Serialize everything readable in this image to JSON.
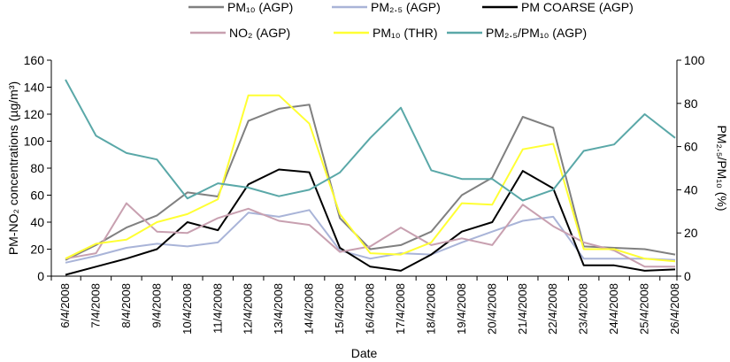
{
  "chart_data": {
    "type": "line",
    "xlabel": "Date",
    "ylabel": "PM-NO₂ concentrations (µg/m³)",
    "y2label": "PM₂.₅/PM₁₀ (%)",
    "ylim": [
      0,
      160
    ],
    "y2lim": [
      0,
      100
    ],
    "yticks": [
      0,
      20,
      40,
      60,
      80,
      100,
      120,
      140,
      160
    ],
    "y2ticks": [
      0,
      20,
      40,
      60,
      80,
      100
    ],
    "grid": false,
    "legend_position": "top",
    "categories": [
      "6/4/2008",
      "7/4/2008",
      "8/4/2008",
      "9/4/2008",
      "10/4/2008",
      "11/4/2008",
      "12/4/2008",
      "13/4/2008",
      "14/4/2008",
      "15/4/2008",
      "16/4/2008",
      "17/4/2008",
      "18/4/2008",
      "19/4/2008",
      "20/4/2008",
      "21/4/2008",
      "22/4/2008",
      "23/4/2008",
      "24/4/2008",
      "25/4/2008",
      "26/4/2008"
    ],
    "series": [
      {
        "name": "PM₁₀ (AGP)",
        "color": "#808080",
        "axis": "left",
        "values": [
          12,
          23,
          36,
          45,
          62,
          59,
          115,
          124,
          127,
          43,
          20,
          23,
          33,
          60,
          73,
          118,
          110,
          22,
          21,
          20,
          16
        ]
      },
      {
        "name": "PM₂.₅ (AGP)",
        "color": "#a9b4d8",
        "axis": "left",
        "values": [
          10,
          15,
          21,
          24,
          22,
          25,
          47,
          44,
          49,
          19,
          13,
          17,
          16,
          25,
          33,
          41,
          44,
          13,
          13,
          13,
          12
        ]
      },
      {
        "name": "PM COARSE (AGP)",
        "color": "#000000",
        "axis": "left",
        "values": [
          1,
          7,
          13,
          20,
          40,
          34,
          68,
          79,
          77,
          21,
          7,
          4,
          16,
          33,
          40,
          78,
          65,
          8,
          8,
          4,
          5
        ]
      },
      {
        "name": "NO₂ (AGP)",
        "color": "#c8a0b0",
        "axis": "left",
        "values": [
          13,
          17,
          54,
          33,
          32,
          43,
          50,
          41,
          38,
          18,
          22,
          36,
          23,
          28,
          23,
          53,
          37,
          25,
          19,
          7,
          7
        ]
      },
      {
        "name": "PM₁₀ (THR)",
        "color": "#ffff33",
        "axis": "left",
        "values": [
          13,
          24,
          27,
          40,
          46,
          57,
          134,
          134,
          113,
          46,
          17,
          16,
          25,
          54,
          53,
          94,
          98,
          20,
          20,
          13,
          11
        ]
      },
      {
        "name": "PM₂.₅/PM₁₀ (AGP)",
        "color": "#5aa8a8",
        "axis": "right",
        "values": [
          91,
          65,
          57,
          54,
          36,
          43,
          41,
          37,
          40,
          48,
          64,
          78,
          49,
          45,
          45,
          35,
          40,
          58,
          61,
          75,
          64
        ]
      }
    ]
  }
}
